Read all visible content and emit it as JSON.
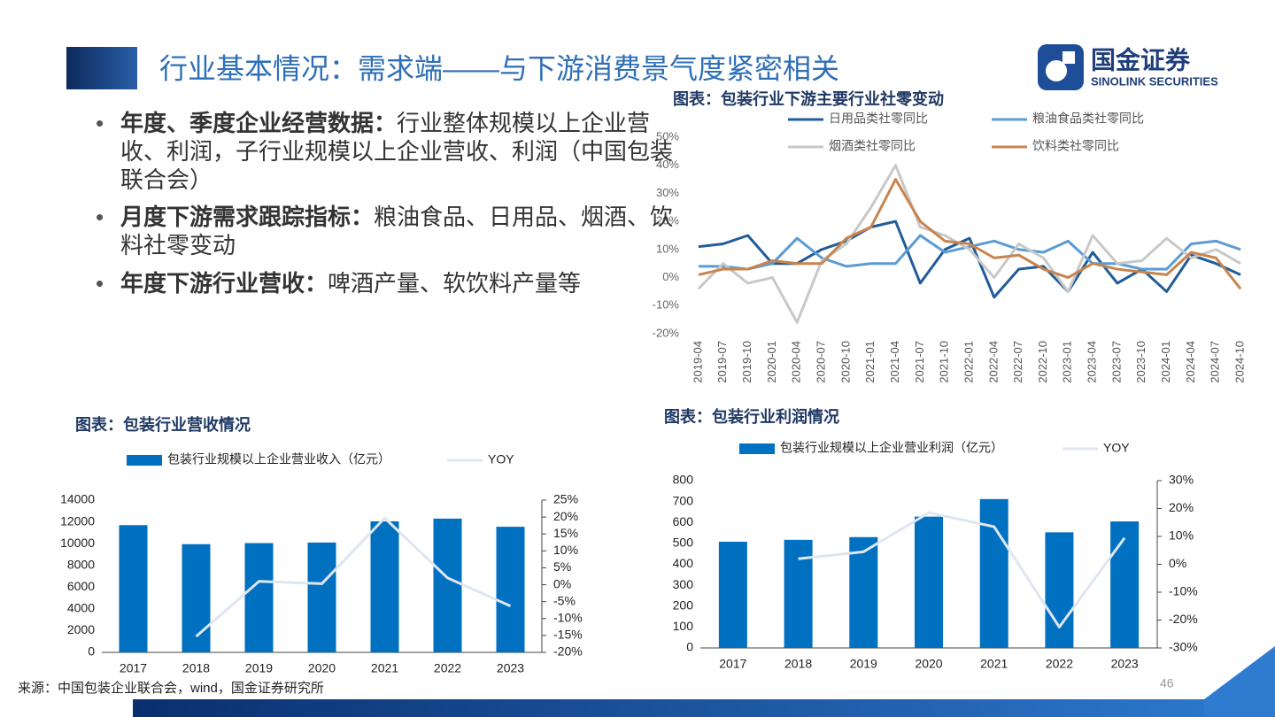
{
  "header": {
    "title": "行业基本情况：需求端——与下游消费景气度紧密相关",
    "logo_cn": "国金证券",
    "logo_en": "SINOLINK SECURITIES"
  },
  "bullets": [
    {
      "bold": "年度、季度企业经营数据：",
      "text": "行业整体规模以上企业营收、利润，子行业规模以上企业营收、利润（中国包装联合会）"
    },
    {
      "bold": "月度下游需求跟踪指标：",
      "text": "粮油食品、日用品、烟酒、饮料社零变动"
    },
    {
      "bold": "年度下游行业营收：",
      "text": "啤酒产量、软饮料产量等"
    }
  ],
  "source": "来源：中国包装企业联合会，wind，国金证券研究所",
  "page_number": "46",
  "chart_data": [
    {
      "type": "line",
      "title": "图表：包装行业下游主要行业社零变动",
      "categories": [
        "2019-04",
        "2019-07",
        "2019-10",
        "2020-01",
        "2020-04",
        "2020-07",
        "2020-10",
        "2021-01",
        "2021-04",
        "2021-07",
        "2021-10",
        "2022-01",
        "2022-04",
        "2022-07",
        "2022-10",
        "2023-01",
        "2023-04",
        "2023-07",
        "2023-10",
        "2024-01",
        "2024-04",
        "2024-07",
        "2024-10"
      ],
      "series": [
        {
          "name": "日用品类社零同比",
          "color": "#1f5c99",
          "values": [
            11,
            12,
            15,
            5,
            5,
            10,
            13,
            18,
            20,
            -2,
            10,
            14,
            -7,
            3,
            4,
            -5,
            9,
            -2,
            3,
            -5,
            8,
            5,
            1
          ]
        },
        {
          "name": "粮油食品类社零同比",
          "color": "#5b9bd5",
          "values": [
            4,
            4,
            3,
            5,
            14,
            7,
            4,
            5,
            5,
            15,
            9,
            11,
            13,
            10,
            9,
            13,
            5,
            5,
            3,
            3,
            12,
            13,
            10
          ]
        },
        {
          "name": "烟酒类社零同比",
          "color": "#c8c8c8",
          "values": [
            -4,
            5,
            -2,
            0,
            -16,
            6,
            12,
            25,
            40,
            18,
            15,
            10,
            0,
            12,
            7,
            -5,
            15,
            5,
            6,
            14,
            7,
            10,
            5
          ]
        },
        {
          "name": "饮料类社零同比",
          "color": "#c8844e",
          "values": [
            1,
            3,
            3,
            6,
            5,
            5,
            14,
            18,
            35,
            20,
            13,
            12,
            7,
            8,
            3,
            0,
            5,
            3,
            2,
            1,
            9,
            7,
            -4
          ]
        }
      ],
      "ylim": [
        -20,
        50
      ],
      "yticks": [
        {
          "value": -20,
          "label": "-20%"
        },
        {
          "value": -10,
          "label": "-10%"
        },
        {
          "value": 0,
          "label": "0%"
        },
        {
          "value": 10,
          "label": "10%"
        },
        {
          "value": 20,
          "label": "20%"
        },
        {
          "value": 30,
          "label": "30%"
        },
        {
          "value": 40,
          "label": "40%"
        },
        {
          "value": 50,
          "label": "50%"
        }
      ]
    },
    {
      "type": "bar-line",
      "title": "图表：包装行业营收情况",
      "categories": [
        "2017",
        "2018",
        "2019",
        "2020",
        "2021",
        "2022",
        "2023"
      ],
      "series": [
        {
          "name": "包装行业规模以上企业营业收入（亿元）",
          "type": "bar",
          "color": "#0070c0",
          "values": [
            11700,
            9950,
            10050,
            10100,
            12050,
            12300,
            11550
          ]
        },
        {
          "name": "YOY",
          "type": "line",
          "axis": "y2",
          "color": "#dfe6f2",
          "values": [
            null,
            -15.3,
            1,
            0.3,
            19.7,
            2,
            -6.3
          ]
        }
      ],
      "ylim": [
        0,
        14000
      ],
      "yticks": [
        0,
        2000,
        4000,
        6000,
        8000,
        10000,
        12000,
        14000
      ],
      "y2lim": [
        -20,
        25
      ],
      "y2ticks": [
        {
          "value": -20,
          "label": "-20%"
        },
        {
          "value": -15,
          "label": "-15%"
        },
        {
          "value": -10,
          "label": "-10%"
        },
        {
          "value": -5,
          "label": "-5%"
        },
        {
          "value": 0,
          "label": "0%"
        },
        {
          "value": 5,
          "label": "5%"
        },
        {
          "value": 10,
          "label": "10%"
        },
        {
          "value": 15,
          "label": "15%"
        },
        {
          "value": 20,
          "label": "20%"
        },
        {
          "value": 25,
          "label": "25%"
        }
      ]
    },
    {
      "type": "bar-line",
      "title": "图表：包装行业利润情况",
      "categories": [
        "2017",
        "2018",
        "2019",
        "2020",
        "2021",
        "2022",
        "2023"
      ],
      "series": [
        {
          "name": "包装行业规模以上企业营业利润（亿元）",
          "type": "bar",
          "color": "#0070c0",
          "values": [
            508,
            517,
            530,
            628,
            712,
            553,
            605
          ]
        },
        {
          "name": "YOY",
          "type": "line",
          "axis": "y2",
          "color": "#dfe6f2",
          "values": [
            null,
            2,
            4.5,
            18.5,
            13.5,
            -22.5,
            9.5
          ]
        }
      ],
      "ylim": [
        0,
        800
      ],
      "yticks": [
        0,
        100,
        200,
        300,
        400,
        500,
        600,
        700,
        800
      ],
      "y2lim": [
        -30,
        30
      ],
      "y2ticks": [
        {
          "value": -30,
          "label": "-30%"
        },
        {
          "value": -20,
          "label": "-20%"
        },
        {
          "value": -10,
          "label": "-10%"
        },
        {
          "value": 0,
          "label": "0%"
        },
        {
          "value": 10,
          "label": "10%"
        },
        {
          "value": 20,
          "label": "20%"
        },
        {
          "value": 30,
          "label": "30%"
        }
      ]
    }
  ]
}
